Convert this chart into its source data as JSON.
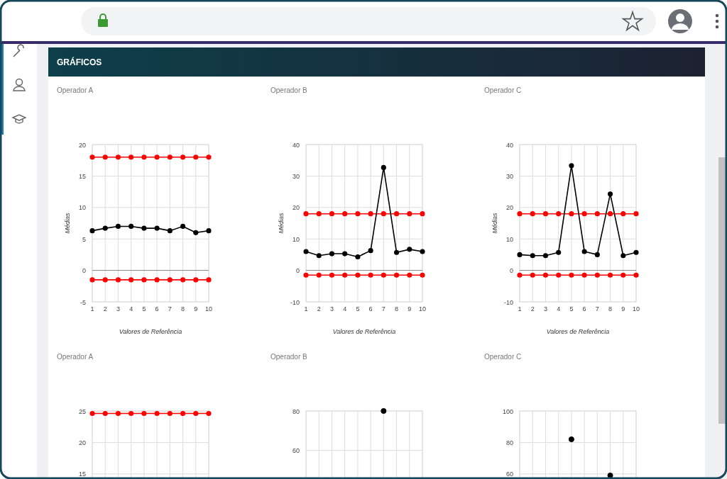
{
  "chart_data": [
    {
      "type": "line",
      "title": "Operador A",
      "annotations": [
        "GRÁFICOS"
      ],
      "xlabel": "Valores de Referência",
      "ylabel": "Médias",
      "x": [
        1,
        2,
        3,
        4,
        5,
        6,
        7,
        8,
        9,
        10
      ],
      "xlim": [
        1,
        10
      ],
      "xticks": [
        1,
        2,
        3,
        4,
        5,
        6,
        7,
        8,
        9,
        10
      ],
      "ylim": [
        -5,
        20
      ],
      "yticks": [
        -5,
        0,
        5,
        10,
        15,
        20
      ],
      "grid": true,
      "marker": "circle",
      "ref_lines": [
        {
          "axis": "y",
          "value": 0,
          "color": "#888888"
        }
      ],
      "series": [
        {
          "color": "#ff0000",
          "values": [
            18,
            18,
            18,
            18,
            18,
            18,
            18,
            18,
            18,
            18
          ]
        },
        {
          "color": "#ff0000",
          "values": [
            -1.5,
            -1.5,
            -1.5,
            -1.5,
            -1.5,
            -1.5,
            -1.5,
            -1.5,
            -1.5,
            -1.5
          ]
        },
        {
          "color": "#000000",
          "values": [
            6.3,
            6.7,
            7,
            7,
            6.7,
            6.7,
            6.3,
            7,
            6,
            6.3
          ]
        }
      ]
    },
    {
      "type": "line",
      "title": "Operador B",
      "xlabel": "Valores de Referência",
      "ylabel": "Médias",
      "x": [
        1,
        2,
        3,
        4,
        5,
        6,
        7,
        8,
        9,
        10
      ],
      "xlim": [
        1,
        10
      ],
      "xticks": [
        1,
        2,
        3,
        4,
        5,
        6,
        7,
        8,
        9,
        10
      ],
      "ylim": [
        -10,
        40
      ],
      "yticks": [
        -10,
        0,
        10,
        20,
        30,
        40
      ],
      "grid": true,
      "marker": "circle",
      "ref_lines": [
        {
          "axis": "y",
          "value": 0,
          "color": "#888888"
        }
      ],
      "series": [
        {
          "color": "#ff0000",
          "values": [
            18,
            18,
            18,
            18,
            18,
            18,
            18,
            18,
            18,
            18
          ]
        },
        {
          "color": "#ff0000",
          "values": [
            -1.5,
            -1.5,
            -1.5,
            -1.5,
            -1.5,
            -1.5,
            -1.5,
            -1.5,
            -1.5,
            -1.5
          ]
        },
        {
          "color": "#000000",
          "values": [
            6,
            4.7,
            5.3,
            5.3,
            4.3,
            6.3,
            32.7,
            5.7,
            6.7,
            6
          ]
        }
      ]
    },
    {
      "type": "line",
      "title": "Operador C",
      "xlabel": "Valores de Referência",
      "ylabel": "Médias",
      "x": [
        1,
        2,
        3,
        4,
        5,
        6,
        7,
        8,
        9,
        10
      ],
      "xlim": [
        1,
        10
      ],
      "xticks": [
        1,
        2,
        3,
        4,
        5,
        6,
        7,
        8,
        9,
        10
      ],
      "ylim": [
        -10,
        40
      ],
      "yticks": [
        -10,
        0,
        10,
        20,
        30,
        40
      ],
      "grid": true,
      "marker": "circle",
      "ref_lines": [
        {
          "axis": "y",
          "value": 0,
          "color": "#888888"
        }
      ],
      "series": [
        {
          "color": "#ff0000",
          "values": [
            18,
            18,
            18,
            18,
            18,
            18,
            18,
            18,
            18,
            18
          ]
        },
        {
          "color": "#ff0000",
          "values": [
            -1.5,
            -1.5,
            -1.5,
            -1.5,
            -1.5,
            -1.5,
            -1.5,
            -1.5,
            -1.5,
            -1.5
          ]
        },
        {
          "color": "#000000",
          "values": [
            5,
            4.7,
            4.7,
            5.7,
            33.3,
            6,
            5,
            24.3,
            4.7,
            5.7
          ]
        }
      ]
    },
    {
      "type": "line",
      "title": "Operador A",
      "x": [
        1,
        2,
        3,
        4,
        5,
        6,
        7,
        8,
        9,
        10
      ],
      "xlim": [
        1,
        10
      ],
      "xticks": [
        {
          "value": 1,
          "label": null
        },
        {
          "value": 2,
          "label": null
        },
        {
          "value": 3,
          "label": null
        },
        {
          "value": 4,
          "label": null
        },
        {
          "value": 5,
          "label": null
        },
        {
          "value": 6,
          "label": null
        },
        {
          "value": 7,
          "label": null
        },
        {
          "value": 8,
          "label": null
        },
        {
          "value": 9,
          "label": null
        },
        {
          "value": 10,
          "label": null
        }
      ],
      "tick_labels": "y",
      "ylim": [
        0,
        25
      ],
      "yticks": [
        15,
        20,
        25
      ],
      "grid": true,
      "marker": "circle",
      "series": [
        {
          "color": "#ff0000",
          "values": [
            24.6,
            24.6,
            24.6,
            24.6,
            24.6,
            24.6,
            24.6,
            24.6,
            24.6,
            24.6
          ]
        }
      ]
    },
    {
      "type": "line",
      "title": "Operador B",
      "categories": [
        null,
        null,
        null,
        null,
        null,
        null,
        null,
        null,
        null,
        null
      ],
      "tick_labels": "y",
      "ylim": [
        0,
        80
      ],
      "yticks": [
        60,
        80
      ],
      "grid": true,
      "marker": "circle",
      "series": [
        {
          "type": "scatter",
          "color": "#000000",
          "values": [
            null,
            null,
            null,
            null,
            null,
            null,
            80,
            null,
            null,
            null
          ]
        }
      ]
    },
    {
      "type": "line",
      "title": "Operador C",
      "categories": [
        null,
        null,
        null,
        null,
        null,
        null,
        null,
        null,
        null,
        null
      ],
      "tick_labels": "y",
      "ylim": [
        0,
        100
      ],
      "yticks": [
        60,
        80,
        100
      ],
      "grid": true,
      "marker": "circle",
      "series": [
        {
          "type": "scatter",
          "color": "#000000",
          "values": [
            null,
            null,
            null,
            null,
            82,
            null,
            null,
            59,
            null,
            null
          ]
        }
      ]
    }
  ]
}
